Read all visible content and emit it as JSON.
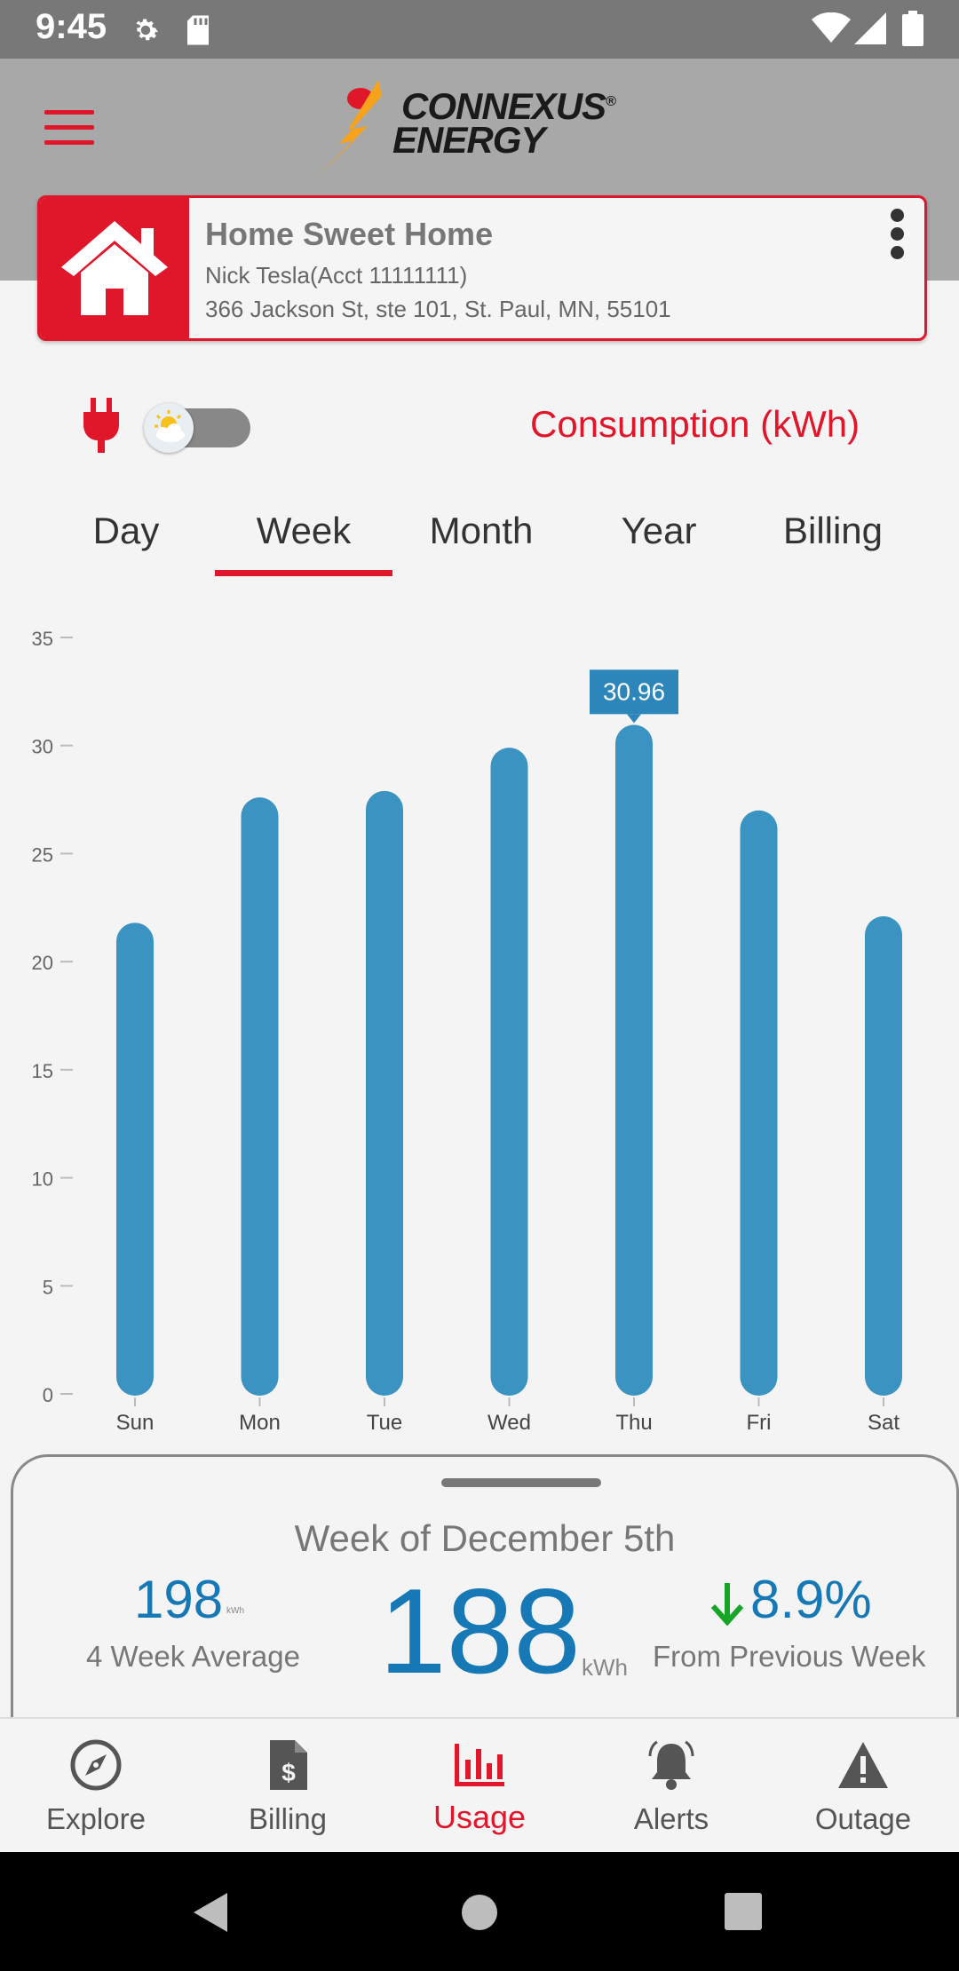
{
  "status_bar": {
    "time": "9:45"
  },
  "header": {
    "logo_line1": "CONNEXUS",
    "logo_line2": "ENERGY",
    "logo_mark": "®"
  },
  "account": {
    "name": "Home Sweet Home",
    "holder": "Nick Tesla(Acct 11111111)",
    "address": "366 Jackson St, ste 101, St. Paul, MN, 55101"
  },
  "usage": {
    "consumption_label": "Consumption (kWh)",
    "tabs": [
      {
        "label": "Day"
      },
      {
        "label": "Week"
      },
      {
        "label": "Month"
      },
      {
        "label": "Year"
      },
      {
        "label": "Billing"
      }
    ],
    "active_tab": "Week"
  },
  "chart_data": {
    "type": "bar",
    "categories": [
      "Sun",
      "Mon",
      "Tue",
      "Wed",
      "Thu",
      "Fri",
      "Sat"
    ],
    "values": [
      21.8,
      27.6,
      27.9,
      29.9,
      30.96,
      27.0,
      22.1
    ],
    "ylim": [
      0,
      35
    ],
    "yticks": [
      "0",
      "5",
      "10",
      "15",
      "20",
      "25",
      "30",
      "35"
    ],
    "highlight_label": "30.96",
    "highlight_index": 4,
    "grid": false,
    "bar_color": "#3a93c0"
  },
  "summary": {
    "week_label": "Week of December 5th",
    "avg_value": "198",
    "avg_unit": "kWh",
    "avg_label": "4 Week Average",
    "total_value": "188",
    "total_unit": "kWh",
    "change_value": "8.9%",
    "change_label": "From Previous Week",
    "change_direction": "down"
  },
  "nav": {
    "items": [
      {
        "label": "Explore",
        "icon": "compass-icon"
      },
      {
        "label": "Billing",
        "icon": "bill-icon"
      },
      {
        "label": "Usage",
        "icon": "bar-chart-icon"
      },
      {
        "label": "Alerts",
        "icon": "bell-icon"
      },
      {
        "label": "Outage",
        "icon": "warning-icon"
      }
    ],
    "active": "Usage"
  },
  "colors": {
    "brand_red": "#e0162b",
    "value_blue": "#1679b6",
    "bar_blue": "#3a93c0",
    "down_green": "#17a526"
  }
}
